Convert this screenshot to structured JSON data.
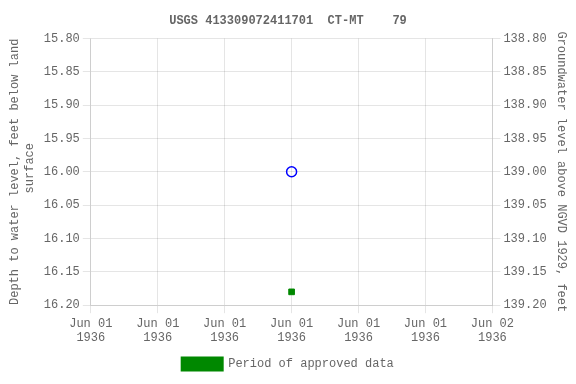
{
  "chart_data": {
    "type": "scatter",
    "title": "USGS 413309072411701  CT-MT    79",
    "categories": [
      "Jun 01\n1936",
      "Jun 01\n1936",
      "Jun 01\n1936",
      "Jun 01\n1936",
      "Jun 01\n1936",
      "Jun 01\n1936",
      "Jun 02\n1936"
    ],
    "series": [
      {
        "color": "#0000ff",
        "marker": "open_circle",
        "values": [
          null,
          null,
          null,
          16.0,
          null,
          null,
          null
        ]
      },
      {
        "name": "Period of approved data",
        "color": "#008800",
        "marker": "square",
        "values": [
          null,
          null,
          null,
          16.18,
          null,
          null,
          null
        ]
      }
    ],
    "ylabel": "Depth to water level, feet below land\n surface",
    "y2label": "Groundwater level above NGVD 1929, feet",
    "ylim": [
      16.2,
      15.8
    ],
    "yticks": [
      {
        "value": 15.8,
        "label": "15.80"
      },
      {
        "value": 15.85,
        "label": "15.85"
      },
      {
        "value": 15.9,
        "label": "15.90"
      },
      {
        "value": 15.95,
        "label": "15.95"
      },
      {
        "value": 16.0,
        "label": "16.00"
      },
      {
        "value": 16.05,
        "label": "16.05"
      },
      {
        "value": 16.1,
        "label": "16.10"
      },
      {
        "value": 16.15,
        "label": "16.15"
      },
      {
        "value": 16.2,
        "label": "16.20"
      }
    ],
    "y2lim": [
      139.2,
      138.8
    ],
    "y2ticks": [
      {
        "value": 139.2,
        "label": "139.20"
      },
      {
        "value": 139.15,
        "label": "139.15"
      },
      {
        "value": 139.1,
        "label": "139.10"
      },
      {
        "value": 139.05,
        "label": "139.05"
      },
      {
        "value": 139.0,
        "label": "139.00"
      },
      {
        "value": 138.95,
        "label": "138.95"
      },
      {
        "value": 138.9,
        "label": "138.90"
      },
      {
        "value": 138.85,
        "label": "138.85"
      },
      {
        "value": 138.8,
        "label": "138.80"
      }
    ],
    "grid": true,
    "legend": "bottom"
  }
}
